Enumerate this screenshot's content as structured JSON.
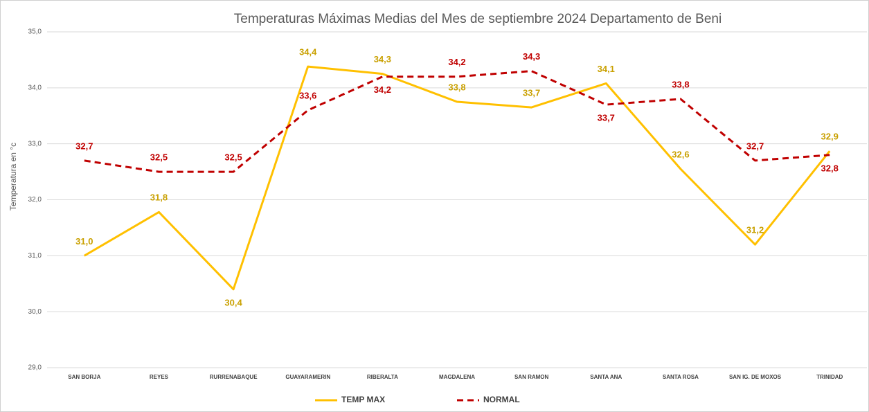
{
  "chart_data": {
    "type": "line",
    "title": "Temperaturas Máximas Medias del Mes de septiembre 2024 Departamento de Beni",
    "y_label": "Temperatura en °c",
    "categories": [
      "SAN BORJA",
      "REYES",
      "RURRENABAQUE",
      "GUAYARAMERIN",
      "RIBERALTA",
      "MAGDALENA",
      "SAN RAMON",
      "SANTA ANA",
      "SANTA ROSA",
      "SAN IG. DE MOXOS",
      "TRINIDAD"
    ],
    "series": [
      {
        "name": "TEMP MAX",
        "color": "#ffc000",
        "label_color": "#c9a000",
        "dash": false,
        "values": [
          31.0,
          31.78,
          30.4,
          34.38,
          34.25,
          33.75,
          33.65,
          34.08,
          32.55,
          31.2,
          32.87
        ],
        "value_labels": [
          "31,0",
          "31,8",
          "30,4",
          "34,4",
          "34,3",
          "33,8",
          "33,7",
          "34,1",
          "32,6",
          "31,2",
          "32,9"
        ]
      },
      {
        "name": "NORMAL",
        "color": "#c00000",
        "label_color": "#c00000",
        "dash": true,
        "values": [
          32.7,
          32.5,
          32.5,
          33.6,
          34.2,
          34.2,
          34.3,
          33.7,
          33.8,
          32.7,
          32.8
        ],
        "value_labels": [
          "32,7",
          "32,5",
          "32,5",
          "33,6",
          "34,2",
          "34,2",
          "34,3",
          "33,7",
          "33,8",
          "32,7",
          "32,8"
        ]
      }
    ],
    "ylim": [
      29,
      35
    ],
    "yticks": [
      {
        "value": 29,
        "label": "29,0"
      },
      {
        "value": 30,
        "label": "30,0"
      },
      {
        "value": 31,
        "label": "31,0"
      },
      {
        "value": 32,
        "label": "32,0"
      },
      {
        "value": 33,
        "label": "33,0"
      },
      {
        "value": 34,
        "label": "34,0"
      },
      {
        "value": 35,
        "label": "35,0"
      }
    ],
    "grid": true,
    "legend": "bottom"
  }
}
